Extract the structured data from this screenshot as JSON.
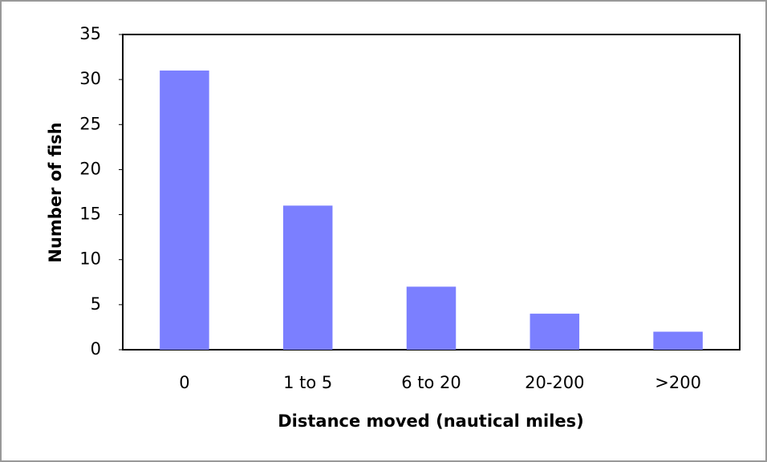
{
  "chart_data": {
    "type": "bar",
    "xlabel": "Distance moved (nautical miles)",
    "ylabel": "Number of fish",
    "categories": [
      "0",
      "1 to 5",
      "6 to 20",
      "20-200",
      ">200"
    ],
    "values": [
      31,
      16,
      7,
      4,
      2
    ],
    "color": "#7b7fff",
    "ylim": [
      0,
      35
    ],
    "yticks": [
      0,
      5,
      10,
      15,
      20,
      25,
      30,
      35
    ],
    "grid": false
  }
}
